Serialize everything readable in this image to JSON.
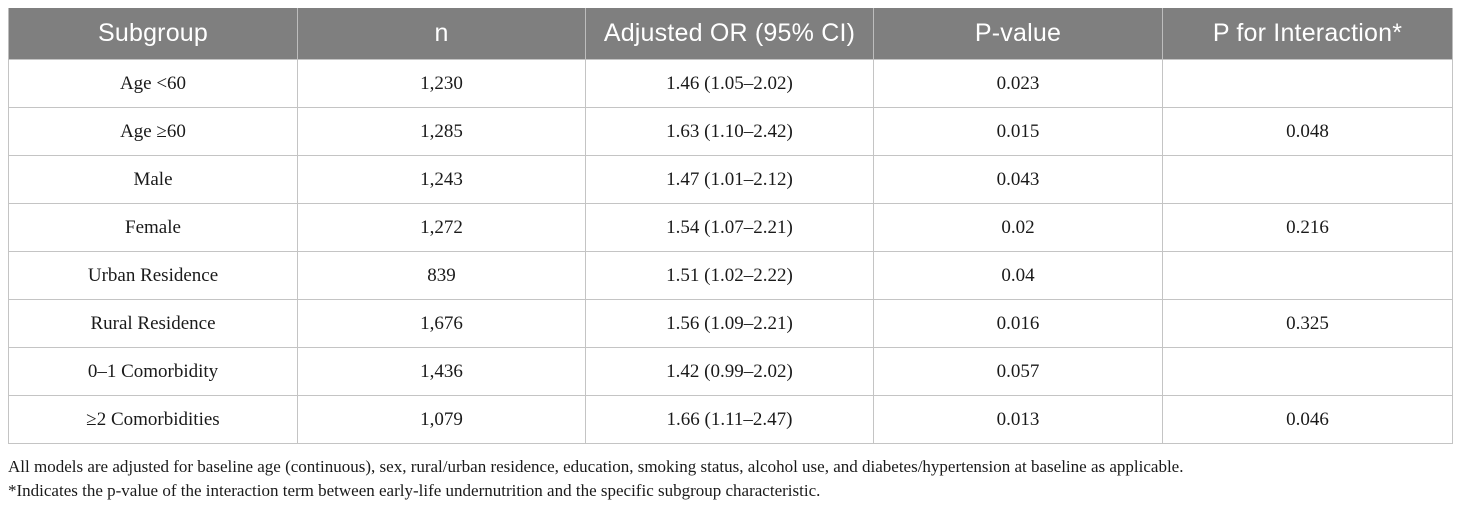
{
  "table": {
    "headers": [
      "Subgroup",
      "n",
      "Adjusted OR (95% CI)",
      "P-value",
      "P for Interaction*"
    ],
    "rows": [
      [
        "Age <60",
        "1,230",
        "1.46 (1.05–2.02)",
        "0.023",
        ""
      ],
      [
        "Age ≥60",
        "1,285",
        "1.63 (1.10–2.42)",
        "0.015",
        "0.048"
      ],
      [
        "Male",
        "1,243",
        "1.47 (1.01–2.12)",
        "0.043",
        ""
      ],
      [
        "Female",
        "1,272",
        "1.54 (1.07–2.21)",
        "0.02",
        "0.216"
      ],
      [
        "Urban Residence",
        "839",
        "1.51 (1.02–2.22)",
        "0.04",
        ""
      ],
      [
        "Rural Residence",
        "1,676",
        "1.56 (1.09–2.21)",
        "0.016",
        "0.325"
      ],
      [
        "0–1 Comorbidity",
        "1,436",
        "1.42 (0.99–2.02)",
        "0.057",
        ""
      ],
      [
        "≥2 Comorbidities",
        "1,079",
        "1.66 (1.11–2.47)",
        "0.013",
        "0.046"
      ]
    ]
  },
  "notes": {
    "line1": "All models are adjusted for baseline age (continuous), sex, rural/urban residence, education, smoking status, alcohol use, and diabetes/hypertension at baseline as applicable.",
    "line2": "*Indicates the p-value of the interaction term between early-life undernutrition and the specific subgroup characteristic."
  },
  "colors": {
    "header_bg": "#7f7f7f",
    "header_text": "#ffffff",
    "grid": "#c4c4c4"
  }
}
